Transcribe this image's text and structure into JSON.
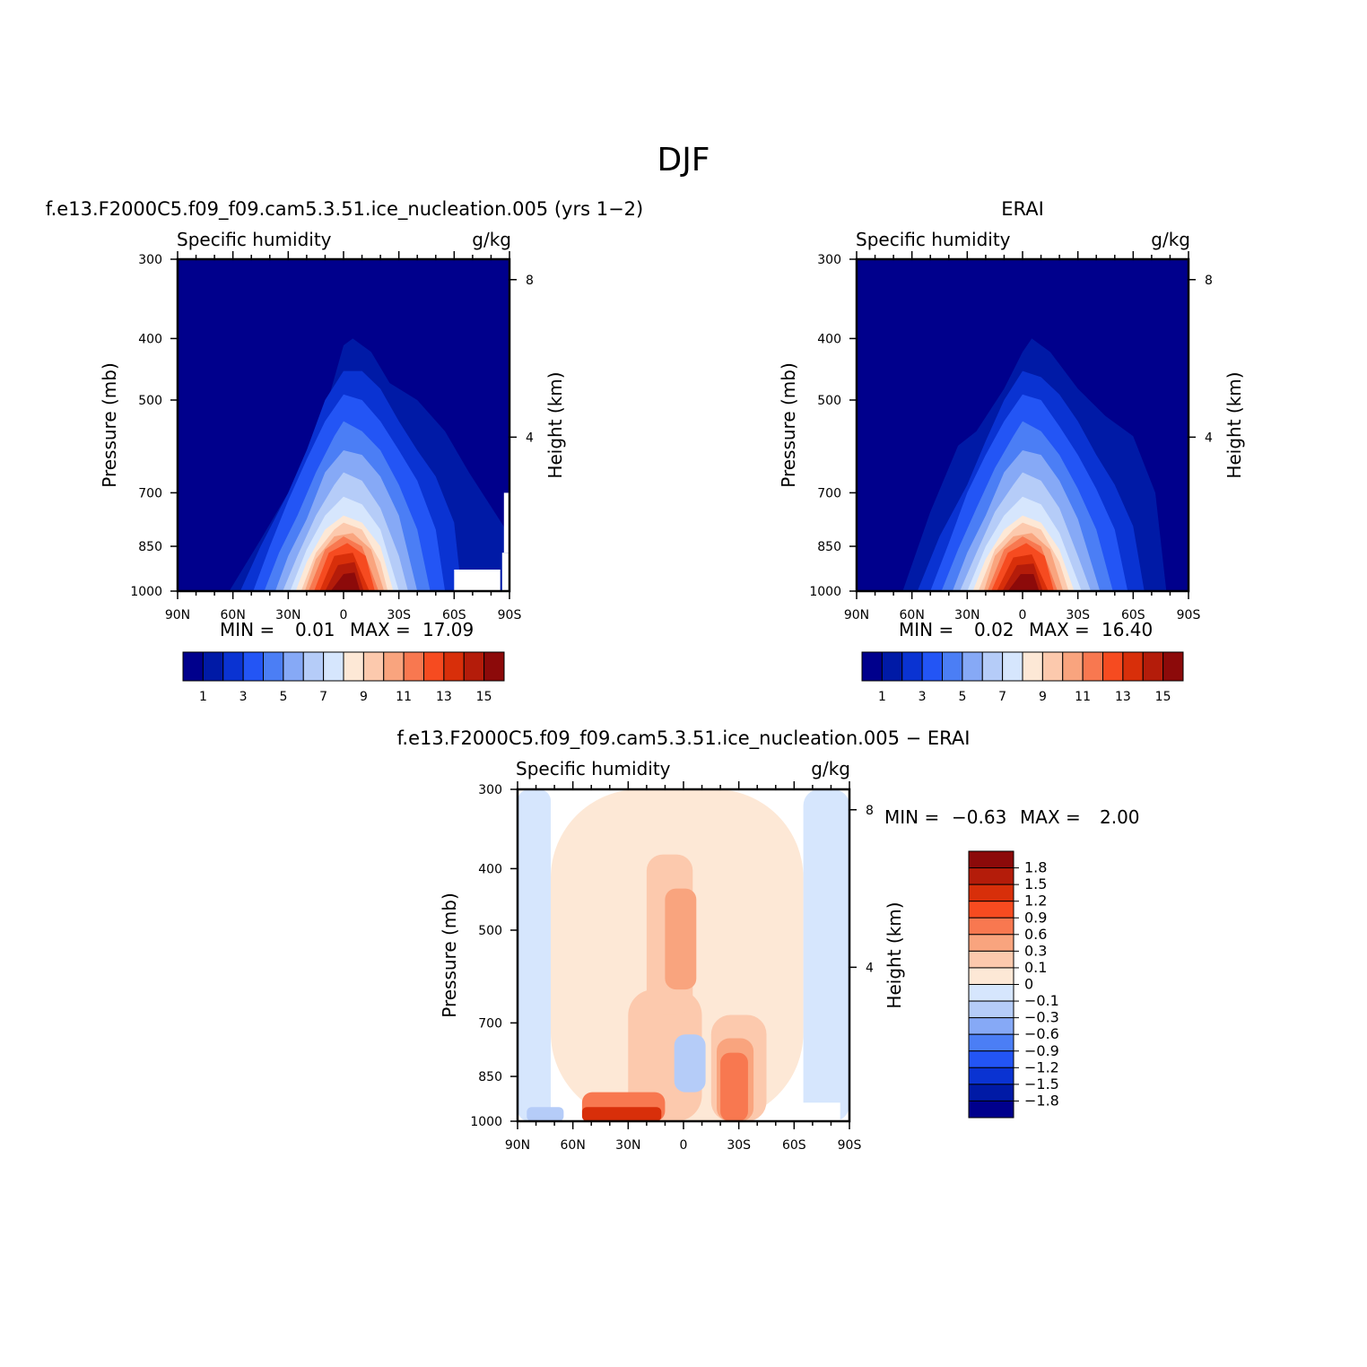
{
  "figure": {
    "title": "DJF"
  },
  "colors": {
    "abs_levels": [
      "#00008c",
      "#001aa6",
      "#0a33d2",
      "#2355f5",
      "#4b7ef5",
      "#86a9f6",
      "#b5ccf8",
      "#d6e6fd",
      "#fde8d6",
      "#fcc9ad",
      "#f9a47e",
      "#f87850",
      "#f64b20",
      "#d82f0a",
      "#b41c0a",
      "#8c0a0a"
    ],
    "diff_levels": [
      "#00008c",
      "#001aa6",
      "#0a33d2",
      "#2355f5",
      "#4b7ef5",
      "#86a9f6",
      "#b5ccf8",
      "#d6e6fd",
      "#fde8d6",
      "#fcc9ad",
      "#f9a47e",
      "#f87850",
      "#f64b20",
      "#d82f0a",
      "#b41c0a",
      "#8c0a0a"
    ]
  },
  "panels": {
    "model": {
      "title": "f.e13.F2000C5.f09_f09.cam5.3.51.ice_nucleation.005 (yrs 1−2)",
      "left_label": "Specific humidity",
      "right_label": "g/kg",
      "ylabel": "Pressure (mb)",
      "ylabel_right": "Height (km)",
      "min_label": "MIN =",
      "min_value": "0.01",
      "max_label": "MAX =",
      "max_value": "17.09"
    },
    "obs": {
      "title": "ERAI",
      "left_label": "Specific humidity",
      "right_label": "g/kg",
      "ylabel": "Pressure (mb)",
      "ylabel_right": "Height (km)",
      "min_label": "MIN =",
      "min_value": "0.02",
      "max_label": "MAX =",
      "max_value": "16.40"
    },
    "diff": {
      "title": "f.e13.F2000C5.f09_f09.cam5.3.51.ice_nucleation.005 − ERAI",
      "left_label": "Specific humidity",
      "right_label": "g/kg",
      "ylabel": "Pressure (mb)",
      "ylabel_right": "Height (km)",
      "min_label": "MIN =",
      "min_value": "−0.63",
      "max_label": "MAX =",
      "max_value": "2.00"
    }
  },
  "chart_data": [
    {
      "type": "heatmap",
      "name": "model",
      "x_ticks": [
        "90N",
        "60N",
        "30N",
        "0",
        "30S",
        "60S",
        "90S"
      ],
      "x_range": [
        90,
        -90
      ],
      "y_ticks": [
        "300",
        "400",
        "500",
        "700",
        "850",
        "1000"
      ],
      "y_tick_values": [
        300,
        400,
        500,
        700,
        850,
        1000
      ],
      "y_range": [
        1000,
        300
      ],
      "y_scale": "log",
      "right_axis_ticks": [
        "8",
        "4"
      ],
      "right_axis_values_km": [
        8,
        4
      ],
      "contour_levels": [
        1,
        2,
        3,
        4,
        5,
        6,
        7,
        8,
        9,
        10,
        11,
        12,
        13,
        14,
        15
      ],
      "colorbar_labels": [
        "1",
        "3",
        "5",
        "7",
        "9",
        "11",
        "13",
        "15"
      ],
      "level_tops_hpa": [
        {
          "level": 1,
          "x": [
            90,
            62,
            45,
            30,
            20,
            10,
            0,
            -5,
            -15,
            -25,
            -40,
            -55,
            -68,
            -88
          ],
          "top": [
            1000,
            1000,
            830,
            700,
            600,
            520,
            410,
            400,
            420,
            470,
            500,
            560,
            650,
            800
          ]
        },
        {
          "level": 2,
          "x": [
            56,
            45,
            30,
            20,
            10,
            0,
            -10,
            -20,
            -30,
            -40,
            -50,
            -60,
            -64
          ],
          "top": [
            1000,
            850,
            700,
            600,
            500,
            450,
            450,
            480,
            540,
            600,
            660,
            780,
            1000
          ]
        },
        {
          "level": 3,
          "x": [
            49,
            40,
            30,
            20,
            10,
            0,
            -10,
            -20,
            -30,
            -40,
            -50,
            -55
          ],
          "top": [
            1000,
            850,
            720,
            620,
            540,
            490,
            500,
            540,
            600,
            670,
            800,
            1000
          ]
        },
        {
          "level": 4,
          "x": [
            43,
            35,
            25,
            15,
            5,
            0,
            -10,
            -20,
            -30,
            -40,
            -47
          ],
          "top": [
            1000,
            870,
            760,
            650,
            570,
            540,
            560,
            600,
            680,
            800,
            1000
          ]
        },
        {
          "level": 5,
          "x": [
            37,
            30,
            20,
            10,
            0,
            -10,
            -20,
            -30,
            -40
          ],
          "top": [
            1000,
            880,
            770,
            650,
            600,
            610,
            660,
            760,
            1000
          ]
        },
        {
          "level": 6,
          "x": [
            33,
            25,
            15,
            5,
            0,
            -10,
            -20,
            -30,
            -35
          ],
          "top": [
            1000,
            880,
            760,
            680,
            650,
            670,
            740,
            880,
            1000
          ]
        },
        {
          "level": 7,
          "x": [
            29,
            20,
            10,
            0,
            -10,
            -20,
            -30
          ],
          "top": [
            1000,
            860,
            760,
            710,
            730,
            800,
            1000
          ]
        },
        {
          "level": 8,
          "x": [
            26,
            20,
            10,
            0,
            -10,
            -20,
            -27
          ],
          "top": [
            1000,
            900,
            800,
            760,
            780,
            850,
            1000
          ]
        },
        {
          "level": 9,
          "x": [
            23,
            15,
            5,
            0,
            -10,
            -20,
            -24
          ],
          "top": [
            1000,
            870,
            800,
            780,
            800,
            900,
            1000
          ]
        },
        {
          "level": 10,
          "x": [
            21,
            15,
            5,
            -5,
            -15,
            -22
          ],
          "top": [
            1000,
            890,
            820,
            810,
            860,
            1000
          ]
        },
        {
          "level": 11,
          "x": [
            19,
            10,
            0,
            -10,
            -19
          ],
          "top": [
            1000,
            860,
            820,
            850,
            1000
          ]
        },
        {
          "level": 12,
          "x": [
            16,
            8,
            -2,
            -12,
            -17
          ],
          "top": [
            1000,
            870,
            840,
            880,
            1000
          ]
        },
        {
          "level": 13,
          "x": [
            13,
            5,
            -5,
            -14
          ],
          "top": [
            1000,
            880,
            870,
            1000
          ]
        },
        {
          "level": 14,
          "x": [
            10,
            3,
            -6,
            -11
          ],
          "top": [
            1000,
            910,
            900,
            1000
          ]
        },
        {
          "level": 15,
          "x": [
            7,
            0,
            -6,
            -9
          ],
          "top": [
            1000,
            940,
            935,
            1000
          ]
        }
      ],
      "masked_regions_note": "white surface-topography mask near 60S-90S"
    },
    {
      "type": "heatmap",
      "name": "obs",
      "x_ticks": [
        "90N",
        "60N",
        "30N",
        "0",
        "30S",
        "60S",
        "90S"
      ],
      "x_range": [
        90,
        -90
      ],
      "y_ticks": [
        "300",
        "400",
        "500",
        "700",
        "850",
        "1000"
      ],
      "y_tick_values": [
        300,
        400,
        500,
        700,
        850,
        1000
      ],
      "y_range": [
        1000,
        300
      ],
      "y_scale": "log",
      "right_axis_ticks": [
        "8",
        "4"
      ],
      "right_axis_values_km": [
        8,
        4
      ],
      "contour_levels": [
        1,
        2,
        3,
        4,
        5,
        6,
        7,
        8,
        9,
        10,
        11,
        12,
        13,
        14,
        15
      ],
      "colorbar_labels": [
        "1",
        "3",
        "5",
        "7",
        "9",
        "11",
        "13",
        "15"
      ],
      "level_tops_hpa": [
        {
          "level": 1,
          "x": [
            90,
            65,
            50,
            35,
            25,
            10,
            0,
            -5,
            -15,
            -30,
            -45,
            -60,
            -72,
            -78
          ],
          "top": [
            1000,
            1000,
            750,
            590,
            560,
            480,
            420,
            400,
            420,
            480,
            530,
            570,
            700,
            1000
          ]
        },
        {
          "level": 2,
          "x": [
            57,
            45,
            30,
            20,
            10,
            0,
            -10,
            -20,
            -30,
            -40,
            -50,
            -60,
            -66
          ],
          "top": [
            1000,
            820,
            680,
            580,
            500,
            450,
            460,
            490,
            540,
            610,
            680,
            790,
            1000
          ]
        },
        {
          "level": 3,
          "x": [
            50,
            40,
            30,
            20,
            10,
            0,
            -10,
            -20,
            -30,
            -40,
            -50,
            -57
          ],
          "top": [
            1000,
            840,
            700,
            610,
            540,
            490,
            500,
            550,
            610,
            690,
            800,
            1000
          ]
        },
        {
          "level": 4,
          "x": [
            44,
            35,
            25,
            15,
            5,
            0,
            -10,
            -20,
            -30,
            -40,
            -49
          ],
          "top": [
            1000,
            860,
            740,
            640,
            570,
            540,
            560,
            610,
            690,
            800,
            1000
          ]
        },
        {
          "level": 5,
          "x": [
            38,
            30,
            20,
            10,
            0,
            -10,
            -20,
            -30,
            -42
          ],
          "top": [
            1000,
            870,
            760,
            650,
            600,
            610,
            670,
            770,
            1000
          ]
        },
        {
          "level": 6,
          "x": [
            34,
            25,
            15,
            5,
            0,
            -10,
            -20,
            -30,
            -37
          ],
          "top": [
            1000,
            870,
            750,
            680,
            650,
            670,
            740,
            880,
            1000
          ]
        },
        {
          "level": 7,
          "x": [
            30,
            20,
            10,
            0,
            -10,
            -20,
            -32
          ],
          "top": [
            1000,
            850,
            760,
            710,
            730,
            810,
            1000
          ]
        },
        {
          "level": 8,
          "x": [
            27,
            20,
            10,
            0,
            -10,
            -20,
            -28
          ],
          "top": [
            1000,
            890,
            800,
            760,
            780,
            860,
            1000
          ]
        },
        {
          "level": 9,
          "x": [
            24,
            15,
            5,
            0,
            -10,
            -20,
            -25
          ],
          "top": [
            1000,
            860,
            800,
            780,
            800,
            900,
            1000
          ]
        },
        {
          "level": 10,
          "x": [
            21,
            15,
            5,
            -5,
            -15,
            -22
          ],
          "top": [
            1000,
            880,
            820,
            810,
            860,
            1000
          ]
        },
        {
          "level": 11,
          "x": [
            19,
            10,
            0,
            -10,
            -19
          ],
          "top": [
            1000,
            860,
            820,
            850,
            1000
          ]
        },
        {
          "level": 12,
          "x": [
            17,
            8,
            -2,
            -12,
            -17
          ],
          "top": [
            1000,
            870,
            840,
            880,
            1000
          ]
        },
        {
          "level": 13,
          "x": [
            14,
            5,
            -5,
            -14
          ],
          "top": [
            1000,
            885,
            875,
            1000
          ]
        },
        {
          "level": 14,
          "x": [
            11,
            3,
            -6,
            -11
          ],
          "top": [
            1000,
            910,
            905,
            1000
          ]
        },
        {
          "level": 15,
          "x": [
            8,
            1,
            -6,
            -9
          ],
          "top": [
            1000,
            940,
            940,
            1000
          ]
        }
      ]
    },
    {
      "type": "heatmap",
      "name": "diff",
      "x_ticks": [
        "90N",
        "60N",
        "30N",
        "0",
        "30S",
        "60S",
        "90S"
      ],
      "x_range": [
        90,
        -90
      ],
      "y_ticks": [
        "300",
        "400",
        "500",
        "700",
        "850",
        "1000"
      ],
      "y_tick_values": [
        300,
        400,
        500,
        700,
        850,
        1000
      ],
      "y_range": [
        1000,
        300
      ],
      "y_scale": "log",
      "right_axis_ticks": [
        "8",
        "4"
      ],
      "right_axis_values_km": [
        8,
        4
      ],
      "contour_levels": [
        -1.8,
        -1.5,
        -1.2,
        -0.9,
        -0.6,
        -0.3,
        -0.1,
        0,
        0.1,
        0.3,
        0.6,
        0.9,
        1.2,
        1.5,
        1.8
      ],
      "colorbar_labels": [
        "1.8",
        "1.5",
        "1.2",
        "0.9",
        "0.6",
        "0.3",
        "0.1",
        "0",
        "−0.1",
        "−0.3",
        "−0.6",
        "−0.9",
        "−1.2",
        "−1.5",
        "−1.8"
      ],
      "regions": [
        {
          "level": "-0.1..0",
          "x": [
            90,
            72
          ],
          "p": [
            300,
            1000
          ]
        },
        {
          "level": "0..0.1",
          "x": [
            72,
            -65
          ],
          "p": [
            300,
            1000
          ]
        },
        {
          "level": "-0.1..0",
          "x": [
            -65,
            -90
          ],
          "p": [
            300,
            1000
          ]
        },
        {
          "level": "0.1..0.3",
          "x": [
            30,
            -10
          ],
          "p": [
            620,
            1000
          ]
        },
        {
          "level": "0.1..0.3",
          "x": [
            20,
            -5
          ],
          "p": [
            380,
            680
          ]
        },
        {
          "level": "0.3..0.6",
          "x": [
            10,
            -7
          ],
          "p": [
            430,
            620
          ]
        },
        {
          "level": "0.1..0.3",
          "x": [
            -15,
            -45
          ],
          "p": [
            680,
            1000
          ]
        },
        {
          "level": "0.3..0.6",
          "x": [
            -18,
            -38
          ],
          "p": [
            740,
            1000
          ]
        },
        {
          "level": "0.6..0.9",
          "x": [
            -20,
            -35
          ],
          "p": [
            780,
            1000
          ]
        },
        {
          "level": "0.6..0.9",
          "x": [
            55,
            10
          ],
          "p": [
            900,
            1000
          ]
        },
        {
          "level": "1.2..1.5",
          "x": [
            55,
            12
          ],
          "p": [
            950,
            1000
          ]
        },
        {
          "level": "-0.3..-0.1",
          "x": [
            5,
            -12
          ],
          "p": [
            730,
            900
          ]
        },
        {
          "level": "-0.3..-0.1",
          "x": [
            85,
            65
          ],
          "p": [
            950,
            1000
          ]
        }
      ]
    }
  ]
}
